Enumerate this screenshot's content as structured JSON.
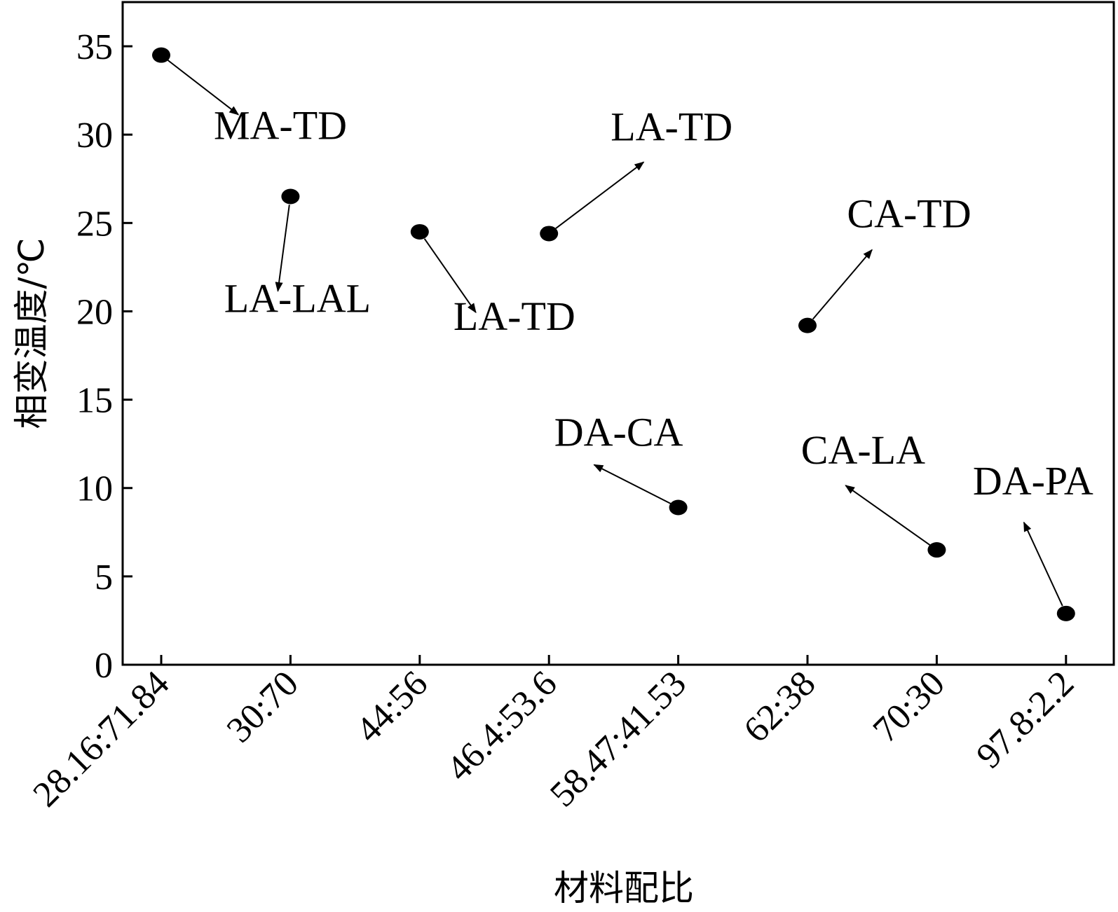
{
  "chart_data": {
    "type": "scatter",
    "title": "",
    "xlabel": "材料配比",
    "ylabel": "相变温度/℃",
    "categories": [
      "28.16:71.84",
      "30:70",
      "44:56",
      "46.4:53.6",
      "58.47:41.53",
      "62:38",
      "70:30",
      "97.8:2.2"
    ],
    "ylim": [
      0,
      37.5
    ],
    "yticks": [
      0,
      5,
      10,
      15,
      20,
      25,
      30,
      35
    ],
    "grid": false,
    "legend": "none",
    "points": [
      {
        "x": "28.16:71.84",
        "y": 34.5,
        "label": "MA-TD"
      },
      {
        "x": "30:70",
        "y": 26.5,
        "label": "LA-LAL"
      },
      {
        "x": "44:56",
        "y": 24.5,
        "label": "LA-TD"
      },
      {
        "x": "46.4:53.6",
        "y": 24.4,
        "label": "LA-TD"
      },
      {
        "x": "58.47:41.53",
        "y": 8.9,
        "label": "DA-CA"
      },
      {
        "x": "62:38",
        "y": 19.2,
        "label": "CA-TD"
      },
      {
        "x": "70:30",
        "y": 6.5,
        "label": "CA-LA"
      },
      {
        "x": "97.8:2.2",
        "y": 2.9,
        "label": "DA-PA"
      }
    ]
  }
}
